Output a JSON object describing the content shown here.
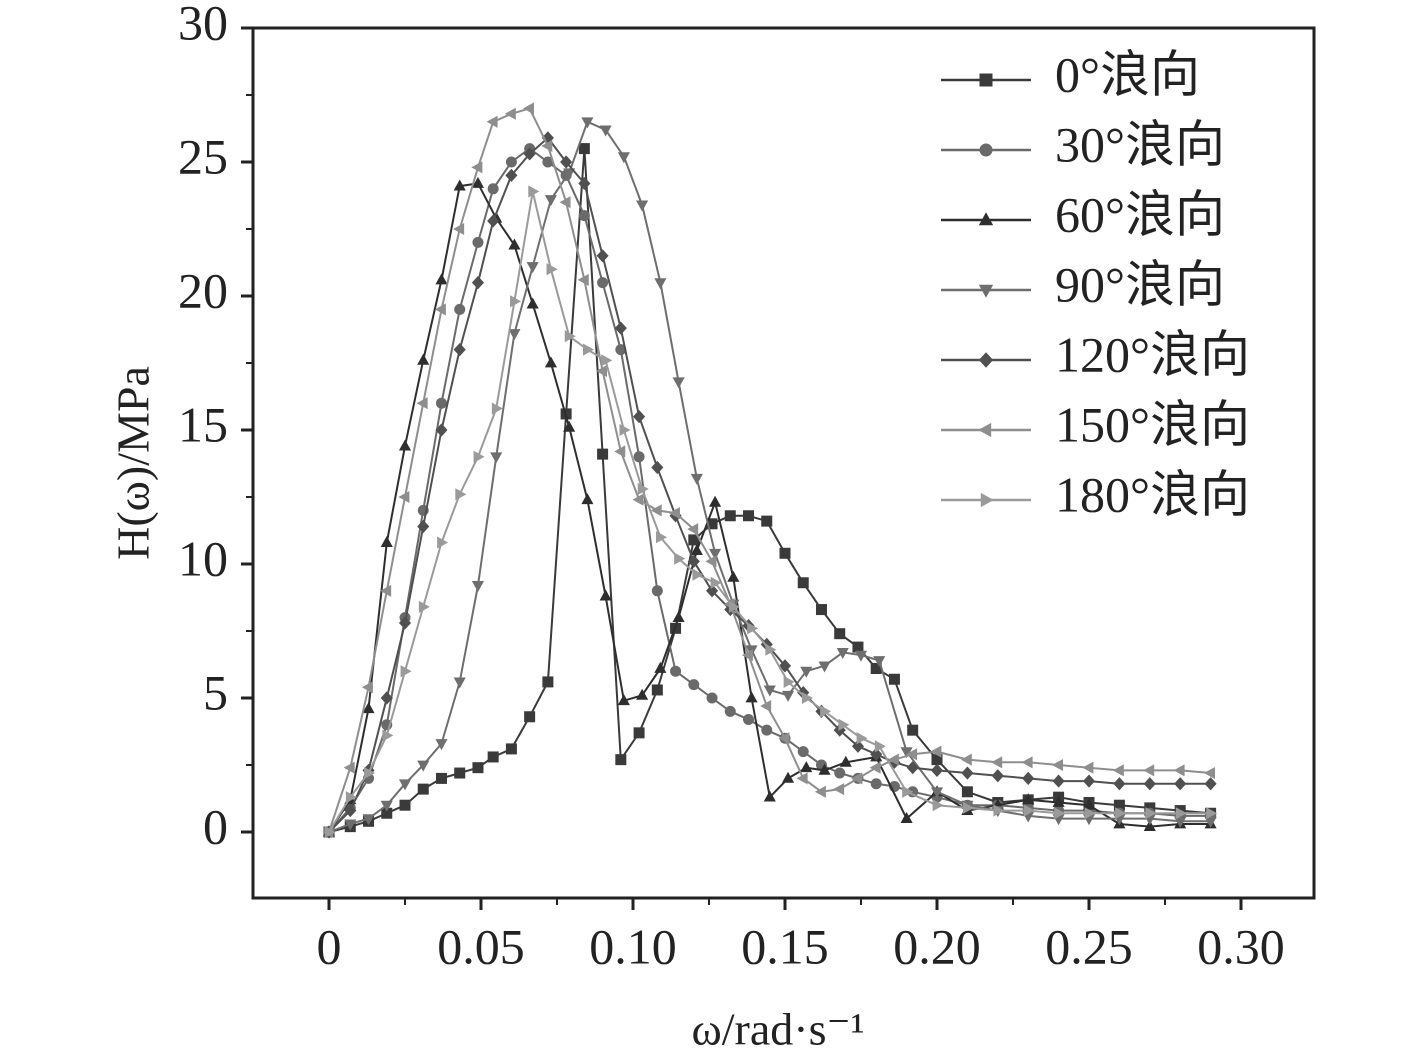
{
  "chart_data": {
    "type": "line",
    "title": "",
    "xlabel": "ω/rad·s⁻¹",
    "ylabel": "H(ω)/MPa",
    "xlim": [
      -0.025,
      0.31
    ],
    "ylim": [
      -2.5,
      30
    ],
    "x_ticks": [
      "0",
      "0.05",
      "0.10",
      "0.15",
      "0.20",
      "0.25",
      "0.30"
    ],
    "y_ticks": [
      "0",
      "5",
      "10",
      "15",
      "20",
      "25",
      "30"
    ],
    "legend_position": "top-right",
    "grid": false,
    "series": [
      {
        "name": "0°浪向",
        "marker": "square",
        "color": "#3a3a3a",
        "x": [
          0,
          0.007,
          0.013,
          0.019,
          0.025,
          0.031,
          0.037,
          0.043,
          0.049,
          0.054,
          0.06,
          0.066,
          0.072,
          0.078,
          0.084,
          0.09,
          0.096,
          0.102,
          0.108,
          0.114,
          0.12,
          0.126,
          0.132,
          0.138,
          0.144,
          0.15,
          0.156,
          0.162,
          0.168,
          0.174,
          0.18,
          0.186,
          0.192,
          0.2,
          0.21,
          0.22,
          0.23,
          0.24,
          0.25,
          0.26,
          0.27,
          0.28,
          0.29
        ],
        "y": [
          0,
          0.2,
          0.4,
          0.7,
          1.0,
          1.6,
          2.0,
          2.2,
          2.4,
          2.8,
          3.1,
          4.3,
          5.6,
          15.6,
          25.5,
          14.1,
          2.7,
          3.7,
          5.3,
          7.6,
          10.9,
          11.5,
          11.8,
          11.8,
          11.6,
          10.4,
          9.3,
          8.3,
          7.4,
          6.9,
          6.1,
          5.7,
          3.8,
          2.7,
          1.5,
          1.1,
          1.2,
          1.3,
          1.1,
          1.0,
          0.9,
          0.8,
          0.7
        ]
      },
      {
        "name": "30°浪向",
        "marker": "circle",
        "color": "#6a6a6a",
        "x": [
          0,
          0.007,
          0.013,
          0.019,
          0.025,
          0.031,
          0.037,
          0.043,
          0.049,
          0.054,
          0.06,
          0.066,
          0.072,
          0.078,
          0.084,
          0.09,
          0.096,
          0.102,
          0.108,
          0.114,
          0.12,
          0.126,
          0.132,
          0.138,
          0.144,
          0.15,
          0.156,
          0.162,
          0.168,
          0.174,
          0.18,
          0.186,
          0.192,
          0.2,
          0.21,
          0.22,
          0.23,
          0.24,
          0.25,
          0.26,
          0.27,
          0.28,
          0.29
        ],
        "y": [
          0,
          0.9,
          2.0,
          4.0,
          8.0,
          12.0,
          16.0,
          19.5,
          22.0,
          24.0,
          25.0,
          25.5,
          25.0,
          24.5,
          23.0,
          20.5,
          18.0,
          14.0,
          9.0,
          6.0,
          5.5,
          5.0,
          4.5,
          4.2,
          3.8,
          3.5,
          3.0,
          2.5,
          2.2,
          2.0,
          1.8,
          1.7,
          1.5,
          1.3,
          1.0,
          1.0,
          0.9,
          0.8,
          0.8,
          0.7,
          0.7,
          0.6,
          0.6
        ]
      },
      {
        "name": "60°浪向",
        "marker": "triangle-up",
        "color": "#2e2e2e",
        "x": [
          0,
          0.007,
          0.013,
          0.019,
          0.025,
          0.031,
          0.037,
          0.043,
          0.049,
          0.055,
          0.061,
          0.067,
          0.073,
          0.079,
          0.085,
          0.091,
          0.097,
          0.103,
          0.109,
          0.115,
          0.121,
          0.127,
          0.133,
          0.139,
          0.145,
          0.151,
          0.157,
          0.163,
          0.17,
          0.18,
          0.19,
          0.2,
          0.21,
          0.22,
          0.23,
          0.24,
          0.25,
          0.26,
          0.27,
          0.28,
          0.29
        ],
        "y": [
          0,
          1.2,
          4.6,
          10.8,
          14.4,
          17.6,
          20.6,
          24.1,
          24.2,
          22.9,
          21.9,
          19.7,
          17.5,
          15.1,
          12.4,
          8.8,
          4.9,
          5.1,
          6.1,
          8.0,
          10.5,
          12.3,
          9.5,
          5.0,
          1.3,
          2.0,
          2.4,
          2.3,
          2.6,
          2.8,
          0.5,
          1.5,
          0.8,
          1.0,
          1.2,
          1.1,
          1.0,
          0.3,
          0.2,
          0.3,
          0.3
        ]
      },
      {
        "name": "90°浪向",
        "marker": "triangle-down",
        "color": "#6e6e6e",
        "x": [
          0,
          0.007,
          0.013,
          0.019,
          0.025,
          0.031,
          0.037,
          0.043,
          0.049,
          0.055,
          0.061,
          0.067,
          0.073,
          0.079,
          0.085,
          0.091,
          0.097,
          0.103,
          0.109,
          0.115,
          0.121,
          0.127,
          0.133,
          0.139,
          0.145,
          0.151,
          0.157,
          0.163,
          0.169,
          0.175,
          0.181,
          0.19,
          0.2,
          0.21,
          0.22,
          0.23,
          0.24,
          0.25,
          0.26,
          0.27,
          0.28,
          0.29
        ],
        "y": [
          0,
          0.3,
          0.5,
          1.0,
          1.8,
          2.5,
          3.3,
          5.6,
          9.2,
          14.0,
          18.6,
          21.1,
          23.6,
          24.6,
          26.5,
          26.2,
          25.2,
          23.4,
          20.5,
          16.8,
          13.2,
          10.4,
          8.5,
          6.8,
          5.3,
          5.1,
          6.0,
          6.2,
          6.7,
          6.6,
          6.4,
          3.0,
          1.5,
          1.0,
          0.8,
          0.6,
          0.5,
          0.5,
          0.5,
          0.5,
          0.4,
          0.4
        ]
      },
      {
        "name": "120°浪向",
        "marker": "diamond",
        "color": "#505050",
        "x": [
          0,
          0.007,
          0.013,
          0.019,
          0.025,
          0.031,
          0.037,
          0.043,
          0.049,
          0.054,
          0.06,
          0.066,
          0.072,
          0.078,
          0.084,
          0.09,
          0.096,
          0.102,
          0.108,
          0.114,
          0.12,
          0.126,
          0.132,
          0.138,
          0.144,
          0.15,
          0.156,
          0.162,
          0.168,
          0.174,
          0.18,
          0.186,
          0.192,
          0.2,
          0.21,
          0.22,
          0.23,
          0.24,
          0.25,
          0.26,
          0.27,
          0.28,
          0.29
        ],
        "y": [
          0,
          0.8,
          2.3,
          5.0,
          7.8,
          11.4,
          15.0,
          18.0,
          20.5,
          22.8,
          24.5,
          25.3,
          25.9,
          25.0,
          24.2,
          21.5,
          18.8,
          15.5,
          13.6,
          11.8,
          10.1,
          9.0,
          8.3,
          7.7,
          7.0,
          6.2,
          5.2,
          4.5,
          3.8,
          3.2,
          2.9,
          2.6,
          2.4,
          2.3,
          2.2,
          2.1,
          2.0,
          1.9,
          1.9,
          1.8,
          1.8,
          1.8,
          1.8
        ]
      },
      {
        "name": "150°浪向",
        "marker": "triangle-left",
        "color": "#8e8e8e",
        "x": [
          0,
          0.007,
          0.013,
          0.019,
          0.025,
          0.031,
          0.037,
          0.043,
          0.049,
          0.054,
          0.06,
          0.066,
          0.072,
          0.078,
          0.084,
          0.09,
          0.096,
          0.102,
          0.108,
          0.114,
          0.12,
          0.126,
          0.132,
          0.138,
          0.144,
          0.15,
          0.156,
          0.162,
          0.168,
          0.174,
          0.18,
          0.186,
          0.192,
          0.2,
          0.21,
          0.22,
          0.23,
          0.24,
          0.25,
          0.26,
          0.27,
          0.28,
          0.29
        ],
        "y": [
          0,
          2.4,
          5.4,
          9.0,
          12.5,
          16.0,
          19.5,
          22.5,
          24.8,
          26.5,
          26.8,
          27.0,
          25.6,
          23.5,
          20.6,
          17.2,
          14.2,
          12.4,
          12.0,
          11.9,
          11.3,
          10.1,
          8.5,
          6.6,
          4.7,
          3.5,
          2.0,
          1.5,
          1.6,
          2.0,
          2.4,
          2.7,
          2.9,
          3.0,
          2.7,
          2.6,
          2.6,
          2.5,
          2.4,
          2.3,
          2.3,
          2.3,
          2.2
        ]
      },
      {
        "name": "180°浪向",
        "marker": "triangle-right",
        "color": "#9a9a9a",
        "x": [
          0,
          0.007,
          0.013,
          0.019,
          0.025,
          0.031,
          0.037,
          0.043,
          0.049,
          0.055,
          0.061,
          0.067,
          0.073,
          0.079,
          0.085,
          0.091,
          0.097,
          0.103,
          0.109,
          0.115,
          0.121,
          0.127,
          0.133,
          0.139,
          0.145,
          0.151,
          0.157,
          0.163,
          0.169,
          0.175,
          0.181,
          0.19,
          0.2,
          0.21,
          0.22,
          0.23,
          0.24,
          0.25,
          0.26,
          0.27,
          0.28,
          0.29
        ],
        "y": [
          0,
          1.3,
          2.2,
          3.6,
          6.0,
          8.4,
          10.8,
          12.6,
          14.0,
          15.8,
          19.8,
          23.9,
          21.0,
          18.5,
          18.0,
          17.6,
          15.0,
          12.8,
          11.0,
          10.2,
          9.6,
          9.3,
          8.4,
          7.6,
          6.8,
          5.6,
          5.0,
          4.5,
          4.0,
          3.5,
          3.2,
          1.5,
          1.0,
          0.9,
          0.8,
          0.8,
          0.7,
          0.7,
          0.7,
          0.7,
          0.7,
          0.7
        ]
      }
    ]
  }
}
